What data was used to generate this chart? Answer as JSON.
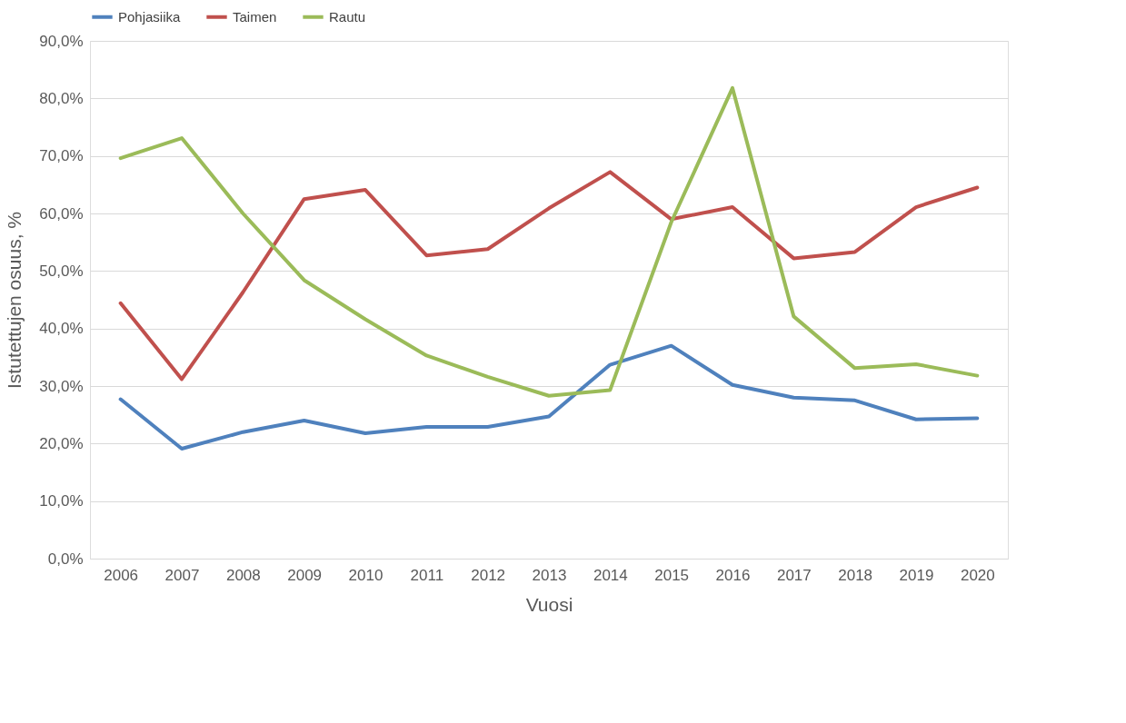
{
  "chart_data": {
    "type": "line",
    "xlabel": "Vuosi",
    "ylabel": "Istutettujen osuus, %",
    "categories": [
      "2006",
      "2007",
      "2008",
      "2009",
      "2010",
      "2011",
      "2012",
      "2013",
      "2014",
      "2015",
      "2016",
      "2017",
      "2018",
      "2019",
      "2020"
    ],
    "series": [
      {
        "name": "Pohjasiika",
        "color": "#4f81bd",
        "values": [
          27.7,
          19.1,
          22.0,
          24.0,
          21.8,
          22.9,
          22.9,
          24.7,
          33.7,
          37.0,
          30.2,
          28.0,
          27.5,
          24.2,
          24.4
        ]
      },
      {
        "name": "Taimen",
        "color": "#c0504d",
        "values": [
          44.4,
          31.2,
          46.3,
          62.5,
          64.1,
          52.7,
          53.8,
          60.9,
          67.2,
          59.0,
          61.1,
          52.2,
          53.3,
          61.1,
          64.5
        ]
      },
      {
        "name": "Rautu",
        "color": "#9bbb59",
        "values": [
          69.6,
          73.1,
          60.0,
          48.4,
          41.6,
          35.3,
          31.6,
          28.3,
          29.3,
          58.5,
          81.8,
          42.1,
          33.1,
          33.8,
          31.8
        ]
      }
    ],
    "ylim": [
      0,
      90
    ],
    "yticks": [
      {
        "value": 0,
        "label": "0,0%"
      },
      {
        "value": 10,
        "label": "10,0%"
      },
      {
        "value": 20,
        "label": "20,0%"
      },
      {
        "value": 30,
        "label": "30,0%"
      },
      {
        "value": 40,
        "label": "40,0%"
      },
      {
        "value": 50,
        "label": "50,0%"
      },
      {
        "value": 60,
        "label": "60,0%"
      },
      {
        "value": 70,
        "label": "70,0%"
      },
      {
        "value": 80,
        "label": "80,0%"
      },
      {
        "value": 90,
        "label": "90,0%"
      }
    ],
    "grid": "y",
    "legend": "top",
    "marker": "none",
    "line_style": "solid"
  }
}
